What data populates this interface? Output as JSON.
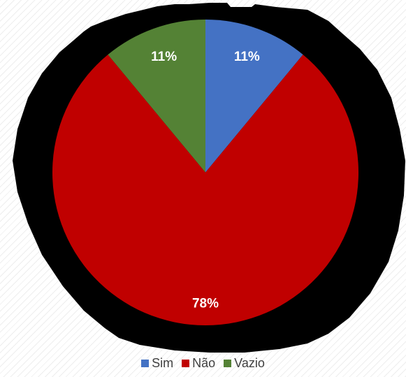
{
  "chart_data": {
    "type": "pie",
    "categories": [
      "Sim",
      "Não",
      "Vazio"
    ],
    "values": [
      11,
      78,
      11
    ],
    "data_labels": [
      "11%",
      "78%",
      "11%"
    ],
    "colors": [
      "#4472c4",
      "#c00000",
      "#548235"
    ],
    "shadow_color": "#000000",
    "start_angle_deg": 0,
    "direction": "clockwise",
    "legend": {
      "placement": "bottom",
      "items": [
        {
          "label": "Sim",
          "color": "#4472c4"
        },
        {
          "label": "Não",
          "color": "#c00000"
        },
        {
          "label": "Vazio",
          "color": "#548235"
        }
      ]
    }
  }
}
